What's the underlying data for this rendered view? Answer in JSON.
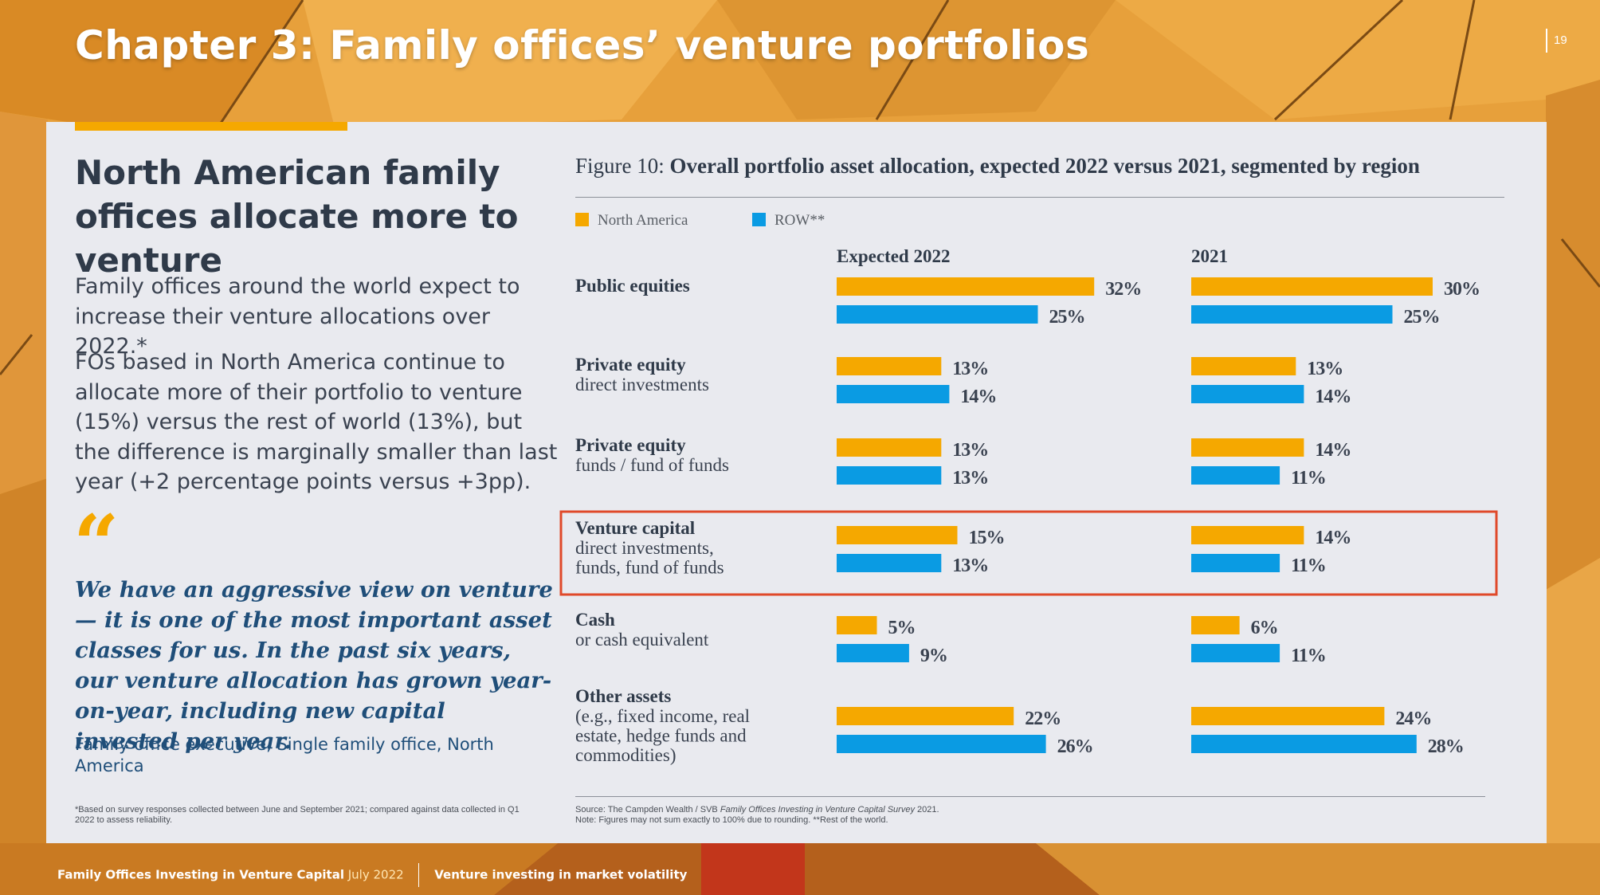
{
  "header": {
    "chapter_title": "Chapter 3: Family offices’ venture portfolios",
    "page_number": "19"
  },
  "left": {
    "headline": "North American family offices allocate more to venture",
    "paragraph1": "Family offices around the world expect to increase their venture allocations over 2022.*",
    "paragraph2": "FOs based in North America continue to allocate more of their portfolio to venture (15%) versus the rest of world (13%), but the difference is marginally smaller than last year (+2 percentage points versus +3pp).",
    "quote_mark": "“",
    "quote": "We have an aggressive view on venture — it is one of the most important asset classes for us. In the past six years, our venture allocation has grown year-on-year, including new capital invested per year.",
    "quote_attribution": "Family office executive, Single family office, North America",
    "footnote": "*Based on survey responses collected between June and September 2021; compared against data collected in Q1 2022 to assess reliability."
  },
  "figure": {
    "label": "Figure 10:",
    "title": "Overall portfolio asset allocation, expected 2022 versus 2021, segmented by region",
    "source_line1_prefix": "Source: The Campden Wealth / SVB",
    "source_line1_italic": "Family Offices Investing in Venture Capital Survey",
    "source_line1_suffix": "2021.",
    "source_line2": "Note: Figures may not sum exactly to 100% due to rounding. **Rest of the world."
  },
  "chart_data": {
    "type": "bar",
    "orientation": "horizontal",
    "title": "Overall portfolio asset allocation, expected 2022 versus 2021, segmented by region",
    "panels": [
      "Expected 2022",
      "2021"
    ],
    "legend": [
      {
        "name": "North America",
        "color": "#F5A800"
      },
      {
        "name": "ROW**",
        "color": "#0A9BE3"
      }
    ],
    "categories": [
      {
        "title": "Public equities",
        "subtitle": []
      },
      {
        "title": "Private equity",
        "subtitle": [
          "direct investments"
        ]
      },
      {
        "title": "Private equity",
        "subtitle": [
          "funds / fund of funds"
        ]
      },
      {
        "title": "Venture capital",
        "subtitle": [
          "direct investments,",
          "funds, fund of funds"
        ]
      },
      {
        "title": "Cash",
        "subtitle": [
          "or cash equivalent"
        ]
      },
      {
        "title": "Other assets",
        "subtitle": [
          "(e.g., fixed income, real",
          "estate, hedge funds and",
          "commodities)"
        ]
      }
    ],
    "series": [
      {
        "name": "North America",
        "panel": "Expected 2022",
        "values": [
          32,
          13,
          13,
          15,
          5,
          22
        ]
      },
      {
        "name": "ROW**",
        "panel": "Expected 2022",
        "values": [
          25,
          14,
          13,
          13,
          9,
          26
        ]
      },
      {
        "name": "North America",
        "panel": "2021",
        "values": [
          30,
          13,
          14,
          14,
          6,
          24
        ]
      },
      {
        "name": "ROW**",
        "panel": "2021",
        "values": [
          25,
          14,
          11,
          11,
          11,
          28
        ]
      }
    ],
    "value_suffix": "%",
    "highlighted_category": "Venture capital",
    "highlight_color": "#E0492A"
  },
  "footer": {
    "publication": "Family Offices Investing in Venture Capital",
    "date": "July 2022",
    "section": "Venture investing in market volatility"
  }
}
